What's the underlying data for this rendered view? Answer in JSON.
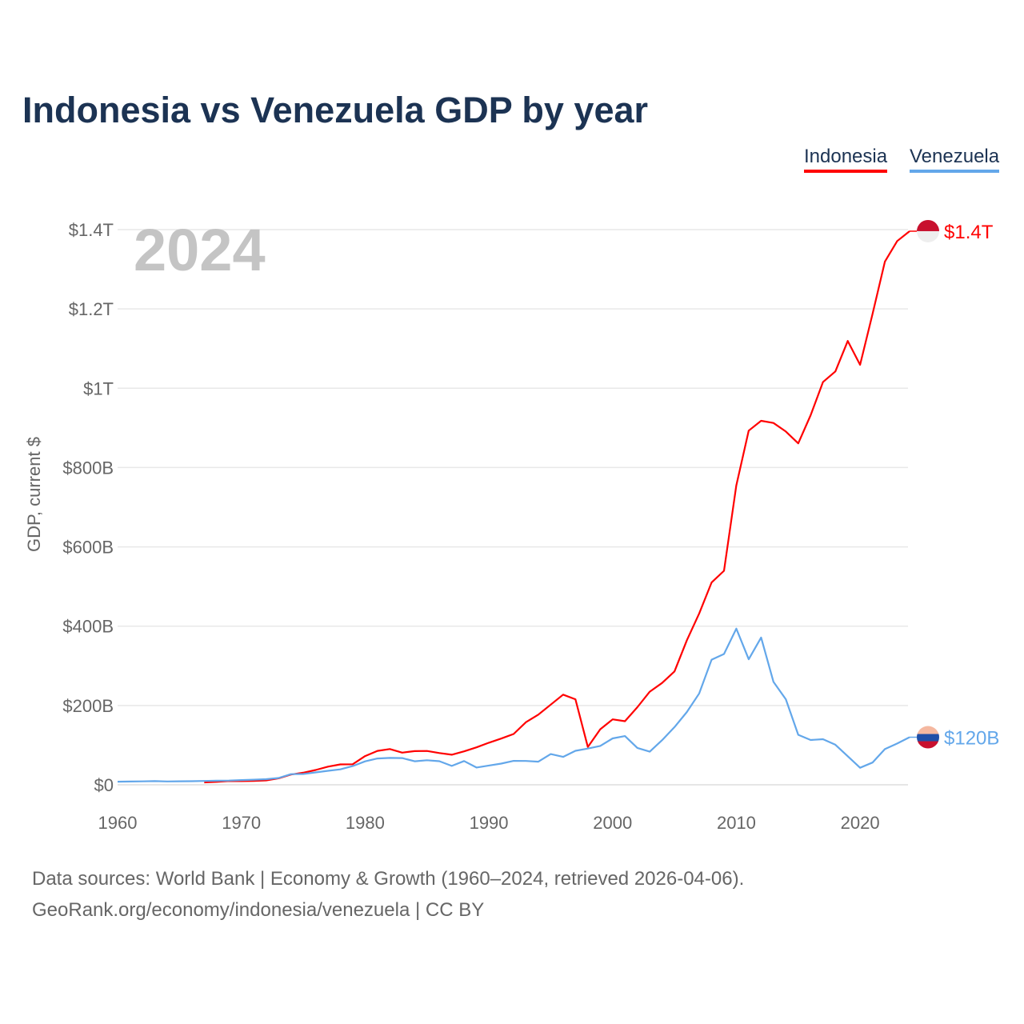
{
  "title": "Indonesia vs Venezuela GDP by year",
  "legend": [
    {
      "label": "Indonesia",
      "color": "#ff0000"
    },
    {
      "label": "Venezuela",
      "color": "#63a7ea"
    }
  ],
  "footer": {
    "line1": "Data sources: World Bank | Economy & Growth (1960–2024, retrieved 2026-04-06).",
    "line2": "GeoRank.org/economy/indonesia/venezuela | CC BY"
  },
  "chart_data": {
    "type": "line",
    "title": "Indonesia vs Venezuela GDP by year",
    "ylabel": "GDP, current $",
    "xlabel": "",
    "year_watermark": "2024",
    "xlim": [
      1960,
      2024
    ],
    "ylim": [
      0,
      1.4
    ],
    "y_unit": "trillion USD",
    "x_ticks": [
      "1960",
      "1970",
      "1980",
      "1990",
      "2000",
      "2010",
      "2020"
    ],
    "y_ticks": [
      {
        "v": 0,
        "label": "$0"
      },
      {
        "v": 0.2,
        "label": "$200B"
      },
      {
        "v": 0.4,
        "label": "$400B"
      },
      {
        "v": 0.6,
        "label": "$600B"
      },
      {
        "v": 0.8,
        "label": "$800B"
      },
      {
        "v": 1.0,
        "label": "$1T"
      },
      {
        "v": 1.2,
        "label": "$1.2T"
      },
      {
        "v": 1.4,
        "label": "$1.4T"
      }
    ],
    "grid": true,
    "legend_position": "top-right",
    "series": [
      {
        "name": "Indonesia",
        "color": "#ff0000",
        "end_label": "$1.4T",
        "start_year": 1967,
        "values": [
          0.006,
          0.0075,
          0.0094,
          0.0092,
          0.0099,
          0.011,
          0.0163,
          0.0258,
          0.0305,
          0.0373,
          0.0458,
          0.0515,
          0.0518,
          0.0725,
          0.0855,
          0.0902,
          0.0811,
          0.0849,
          0.0853,
          0.0801,
          0.0759,
          0.0843,
          0.0945,
          0.1061,
          0.1166,
          0.128,
          0.158,
          0.1769,
          0.2021,
          0.2274,
          0.2157,
          0.0954,
          0.14,
          0.165,
          0.1604,
          0.1957,
          0.2348,
          0.2568,
          0.2859,
          0.3646,
          0.4322,
          0.5102,
          0.5396,
          0.7551,
          0.893,
          0.9179,
          0.9125,
          0.8908,
          0.8609,
          0.9319,
          1.0156,
          1.0423,
          1.1191,
          1.0591,
          1.1865,
          1.3191,
          1.3712,
          1.396
        ]
      },
      {
        "name": "Venezuela",
        "color": "#63a7ea",
        "end_label": "$120B",
        "start_year": 1960,
        "values": [
          0.0078,
          0.0082,
          0.0087,
          0.0093,
          0.0084,
          0.0088,
          0.0091,
          0.0096,
          0.0102,
          0.0106,
          0.0119,
          0.013,
          0.0142,
          0.0172,
          0.0268,
          0.0272,
          0.0313,
          0.0354,
          0.0389,
          0.0472,
          0.0591,
          0.0664,
          0.0678,
          0.0674,
          0.0594,
          0.0619,
          0.0595,
          0.0477,
          0.06,
          0.0436,
          0.0486,
          0.0534,
          0.0604,
          0.0601,
          0.0584,
          0.0774,
          0.0705,
          0.0858,
          0.0913,
          0.098,
          0.1171,
          0.1229,
          0.0929,
          0.0836,
          0.1125,
          0.1455,
          0.1835,
          0.2304,
          0.3156,
          0.3298,
          0.3938,
          0.3165,
          0.3713,
          0.2598,
          0.2156,
          0.126,
          0.113,
          0.115,
          0.101,
          0.072,
          0.043,
          0.056,
          0.09,
          0.104,
          0.12
        ]
      }
    ]
  }
}
